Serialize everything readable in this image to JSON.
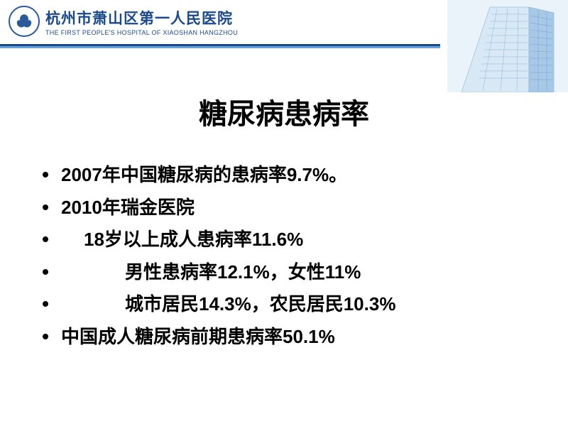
{
  "header": {
    "hospital_cn": "杭州市萧山区第一人民医院",
    "hospital_en": "THE FIRST PEOPLE'S HOSPITAL OF XIAOSHAN HANGZHOU",
    "logo_color": "#2a5a9a",
    "divider_color_dark": "#1a4a8a",
    "divider_color_light": "#6aa0d8",
    "building_color_light": "#d8e8f5",
    "building_color_mid": "#a8c8e8",
    "building_border": "#7aa8d0"
  },
  "slide": {
    "title": "糖尿病患病率",
    "title_fontsize": 40,
    "body_fontsize": 26,
    "text_color": "#000000",
    "background_color": "#ffffff",
    "bullets": [
      {
        "text": "2007年中国糖尿病的患病率9.7%。",
        "indent": 0
      },
      {
        "text": "2010年瑞金医院",
        "indent": 0
      },
      {
        "text": "18岁以上成人患病率11.6%",
        "indent": 1
      },
      {
        "text": "男性患病率12.1%，女性11%",
        "indent": 2
      },
      {
        "text": "城市居民14.3%，农民居民10.3%",
        "indent": 2
      },
      {
        "text": "中国成人糖尿病前期患病率50.1%",
        "indent": 0
      }
    ]
  }
}
